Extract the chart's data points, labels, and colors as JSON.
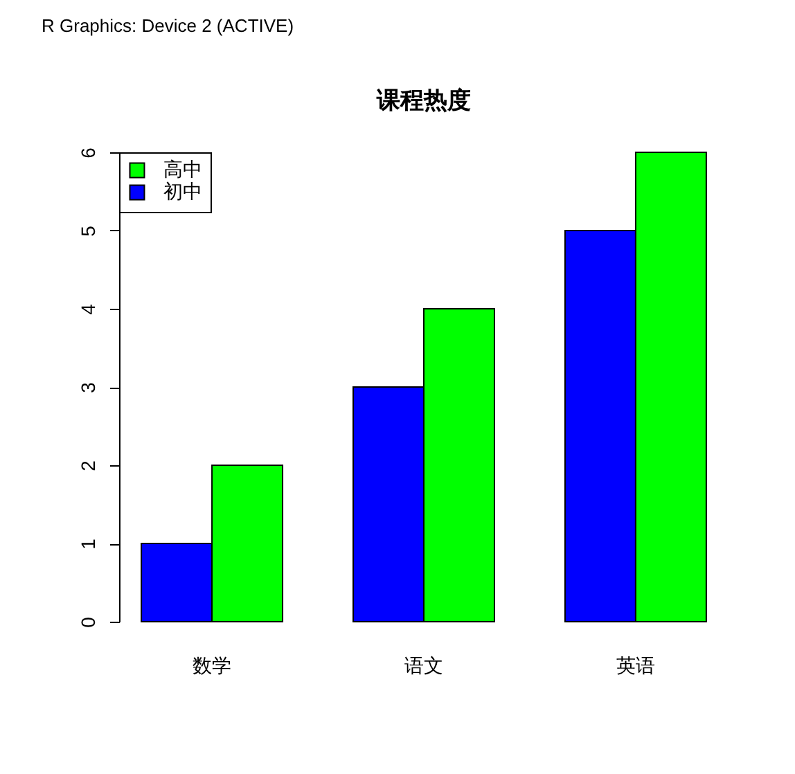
{
  "chart_data": {
    "type": "bar",
    "title": "课程热度",
    "categories": [
      "数学",
      "语文",
      "英语"
    ],
    "series": [
      {
        "name": "初中",
        "color": "#0000ff",
        "values": [
          1,
          3,
          5
        ]
      },
      {
        "name": "高中",
        "color": "#00ff00",
        "values": [
          2,
          4,
          6
        ]
      }
    ],
    "ylim": [
      0,
      6
    ],
    "yticks": [
      0,
      1,
      2,
      3,
      4,
      5,
      6
    ],
    "legend": "top left",
    "grid": false,
    "annotations": [
      "R Graphics: Device 2 (ACTIVE)"
    ]
  }
}
